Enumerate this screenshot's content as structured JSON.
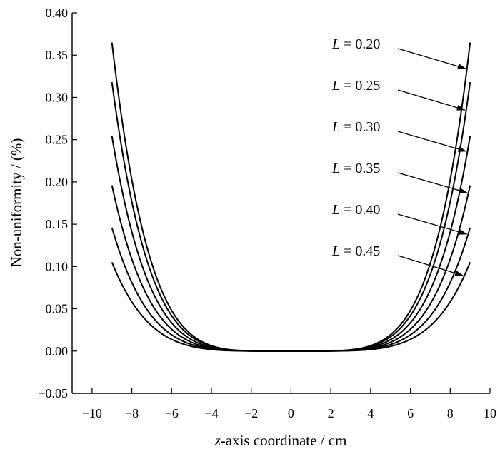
{
  "chart_data": {
    "type": "line",
    "title": "",
    "xlabel_italic": "z",
    "xlabel_rest": "-axis coordinate / cm",
    "ylabel": "Non-uniformity / (%)",
    "xlim": [
      -11,
      10
    ],
    "ylim": [
      -0.05,
      0.4
    ],
    "xticks": [
      -10,
      -8,
      -6,
      -4,
      -2,
      0,
      2,
      4,
      6,
      8,
      10
    ],
    "yticks": [
      -0.05,
      0.0,
      0.05,
      0.1,
      0.15,
      0.2,
      0.25,
      0.3,
      0.35,
      0.4
    ],
    "ytick_labels": [
      "−0.05",
      "0.00",
      "0.05",
      "0.10",
      "0.15",
      "0.20",
      "0.25",
      "0.30",
      "0.35",
      "0.40"
    ],
    "xtick_labels": [
      "−10",
      "−8",
      "−6",
      "−4",
      "−2",
      "0",
      "2",
      "4",
      "6",
      "8",
      "10"
    ],
    "grid": false,
    "x_range": [
      -9,
      9
    ],
    "series": [
      {
        "name": "L = 0.20",
        "L": "L",
        "eq": " = ",
        "val": "0.20",
        "y_at_edge": 0.365
      },
      {
        "name": "L = 0.25",
        "L": "L",
        "eq": " = ",
        "val": "0.25",
        "y_at_edge": 0.318
      },
      {
        "name": "L = 0.30",
        "L": "L",
        "eq": " = ",
        "val": "0.30",
        "y_at_edge": 0.254
      },
      {
        "name": "L = 0.35",
        "L": "L",
        "eq": " = ",
        "val": "0.35",
        "y_at_edge": 0.196
      },
      {
        "name": "L = 0.40",
        "L": "L",
        "eq": " = ",
        "val": "0.40",
        "y_at_edge": 0.146
      },
      {
        "name": "L = 0.45",
        "L": "L",
        "eq": " = ",
        "val": "0.45",
        "y_at_edge": 0.105
      }
    ],
    "legend_placement": "right, labels with arrows pointing to curves"
  }
}
